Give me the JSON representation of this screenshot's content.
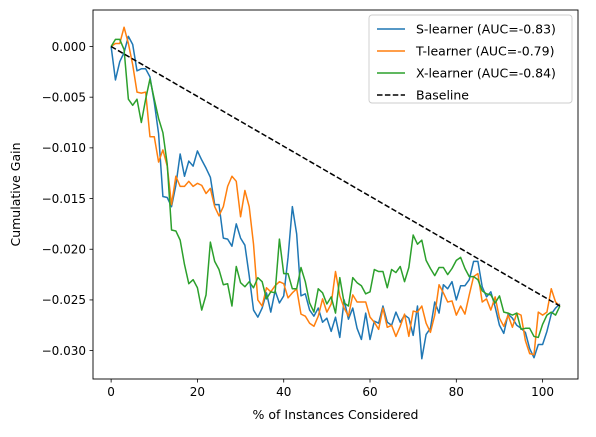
{
  "chart_data": {
    "type": "line",
    "title": "",
    "xlabel": "% of Instances Considered",
    "ylabel": "Cumulative Gain",
    "xlim": [
      -4.2,
      108.2
    ],
    "ylim": [
      -0.0328,
      0.0036
    ],
    "xticks": [
      0,
      20,
      40,
      60,
      80,
      100
    ],
    "xtick_labels": [
      "0",
      "20",
      "40",
      "60",
      "80",
      "100"
    ],
    "yticks": [
      0.0,
      -0.005,
      -0.01,
      -0.015,
      -0.02,
      -0.025,
      -0.03
    ],
    "ytick_labels": [
      "0.000",
      "−0.005",
      "−0.010",
      "−0.015",
      "−0.020",
      "−0.025",
      "−0.030"
    ],
    "grid": false,
    "legend_position": "top-right",
    "series": [
      {
        "name": "S-learner (AUC=-0.83)",
        "color": "#1f77b4",
        "style": "solid",
        "x": [
          0,
          1,
          2,
          3,
          4,
          5,
          6,
          7,
          8,
          9,
          10,
          11,
          12,
          13,
          14,
          15,
          16,
          17,
          18,
          19,
          20,
          21,
          22,
          23,
          24,
          25,
          26,
          27,
          28,
          29,
          30,
          31,
          32,
          33,
          34,
          35,
          36,
          37,
          38,
          39,
          40,
          41,
          42,
          43,
          44,
          45,
          46,
          47,
          48,
          49,
          50,
          51,
          52,
          53,
          54,
          55,
          56,
          57,
          58,
          59,
          60,
          61,
          62,
          63,
          64,
          65,
          66,
          67,
          68,
          69,
          70,
          71,
          72,
          73,
          74,
          75,
          76,
          77,
          78,
          79,
          80,
          81,
          82,
          83,
          84,
          85,
          86,
          87,
          88,
          89,
          90,
          91,
          92,
          93,
          94,
          95,
          96,
          97,
          98,
          99,
          100,
          101,
          102,
          103,
          104
        ],
        "y": [
          0.0,
          -0.0033,
          -0.0015,
          -0.0006,
          0.001,
          0.0002,
          -0.0024,
          -0.0022,
          -0.0022,
          -0.003,
          -0.0055,
          -0.0086,
          -0.0148,
          -0.0149,
          -0.0158,
          -0.0137,
          -0.0106,
          -0.0128,
          -0.0113,
          -0.0118,
          -0.0103,
          -0.0112,
          -0.012,
          -0.0129,
          -0.0156,
          -0.0156,
          -0.0189,
          -0.019,
          -0.0197,
          -0.0175,
          -0.0189,
          -0.0196,
          -0.0226,
          -0.026,
          -0.0267,
          -0.0258,
          -0.0243,
          -0.0262,
          -0.0241,
          -0.0253,
          -0.0246,
          -0.0208,
          -0.0158,
          -0.0185,
          -0.0246,
          -0.0244,
          -0.026,
          -0.0266,
          -0.0258,
          -0.0272,
          -0.0268,
          -0.0281,
          -0.0267,
          -0.0287,
          -0.025,
          -0.0269,
          -0.0258,
          -0.0278,
          -0.0289,
          -0.0263,
          -0.0289,
          -0.0271,
          -0.0273,
          -0.0256,
          -0.0272,
          -0.0275,
          -0.0262,
          -0.0272,
          -0.0265,
          -0.0268,
          -0.0285,
          -0.0256,
          -0.0308,
          -0.0284,
          -0.0278,
          -0.0252,
          -0.0263,
          -0.0235,
          -0.0239,
          -0.0232,
          -0.025,
          -0.0236,
          -0.0236,
          -0.023,
          -0.0212,
          -0.0212,
          -0.0237,
          -0.0247,
          -0.0242,
          -0.0257,
          -0.0275,
          -0.0283,
          -0.0264,
          -0.0268,
          -0.0275,
          -0.0278,
          -0.0282,
          -0.0298,
          -0.0307,
          -0.0294,
          -0.0294,
          -0.0281,
          -0.0264,
          -0.0258,
          -0.0254
        ]
      },
      {
        "name": "T-learner (AUC=-0.79)",
        "color": "#ff7f0e",
        "style": "solid",
        "x": [
          0,
          1,
          2,
          3,
          4,
          5,
          6,
          7,
          8,
          9,
          10,
          11,
          12,
          13,
          14,
          15,
          16,
          17,
          18,
          19,
          20,
          21,
          22,
          23,
          24,
          25,
          26,
          27,
          28,
          29,
          30,
          31,
          32,
          33,
          34,
          35,
          36,
          37,
          38,
          39,
          40,
          41,
          42,
          43,
          44,
          45,
          46,
          47,
          48,
          49,
          50,
          51,
          52,
          53,
          54,
          55,
          56,
          57,
          58,
          59,
          60,
          61,
          62,
          63,
          64,
          65,
          66,
          67,
          68,
          69,
          70,
          71,
          72,
          73,
          74,
          75,
          76,
          77,
          78,
          79,
          80,
          81,
          82,
          83,
          84,
          85,
          86,
          87,
          88,
          89,
          90,
          91,
          92,
          93,
          94,
          95,
          96,
          97,
          98,
          99,
          100,
          101,
          102,
          103,
          104
        ],
        "y": [
          0.0,
          0.0003,
          0.0003,
          0.0019,
          0.0003,
          -0.0018,
          -0.0045,
          -0.0046,
          -0.0045,
          -0.0089,
          -0.0089,
          -0.0114,
          -0.0102,
          -0.0118,
          -0.0156,
          -0.0128,
          -0.0138,
          -0.0138,
          -0.0133,
          -0.0138,
          -0.0135,
          -0.0137,
          -0.0145,
          -0.014,
          -0.0158,
          -0.0167,
          -0.0158,
          -0.0138,
          -0.0128,
          -0.0133,
          -0.0168,
          -0.0142,
          -0.0158,
          -0.0195,
          -0.025,
          -0.0256,
          -0.0238,
          -0.0242,
          -0.0236,
          -0.0232,
          -0.0234,
          -0.0248,
          -0.0243,
          -0.0239,
          -0.0264,
          -0.0266,
          -0.0273,
          -0.0276,
          -0.0266,
          -0.0249,
          -0.0262,
          -0.0254,
          -0.0222,
          -0.0246,
          -0.0258,
          -0.0266,
          -0.0245,
          -0.0252,
          -0.0252,
          -0.0252,
          -0.0267,
          -0.0272,
          -0.0279,
          -0.0258,
          -0.0277,
          -0.0275,
          -0.0286,
          -0.0276,
          -0.0264,
          -0.0286,
          -0.0261,
          -0.0262,
          -0.0256,
          -0.0273,
          -0.0282,
          -0.0265,
          -0.0235,
          -0.0243,
          -0.0252,
          -0.0251,
          -0.0265,
          -0.0256,
          -0.0264,
          -0.0245,
          -0.0227,
          -0.0224,
          -0.0252,
          -0.0249,
          -0.026,
          -0.0247,
          -0.0268,
          -0.0276,
          -0.0265,
          -0.0277,
          -0.0263,
          -0.0265,
          -0.029,
          -0.0303,
          -0.0304,
          -0.0262,
          -0.0265,
          -0.0262,
          -0.0239,
          -0.0252,
          -0.0256
        ]
      },
      {
        "name": "X-learner (AUC=-0.84)",
        "color": "#2ca02c",
        "style": "solid",
        "x": [
          0,
          1,
          2,
          3,
          4,
          5,
          6,
          7,
          8,
          9,
          10,
          11,
          12,
          13,
          14,
          15,
          16,
          17,
          18,
          19,
          20,
          21,
          22,
          23,
          24,
          25,
          26,
          27,
          28,
          29,
          30,
          31,
          32,
          33,
          34,
          35,
          36,
          37,
          38,
          39,
          40,
          41,
          42,
          43,
          44,
          45,
          46,
          47,
          48,
          49,
          50,
          51,
          52,
          53,
          54,
          55,
          56,
          57,
          58,
          59,
          60,
          61,
          62,
          63,
          64,
          65,
          66,
          67,
          68,
          69,
          70,
          71,
          72,
          73,
          74,
          75,
          76,
          77,
          78,
          79,
          80,
          81,
          82,
          83,
          84,
          85,
          86,
          87,
          88,
          89,
          90,
          91,
          92,
          93,
          94,
          95,
          96,
          97,
          98,
          99,
          100,
          101,
          102,
          103,
          104
        ],
        "y": [
          0.0,
          0.0007,
          0.0007,
          -0.0003,
          -0.0052,
          -0.0058,
          -0.0052,
          -0.0075,
          -0.0052,
          -0.0032,
          -0.0052,
          -0.0071,
          -0.0085,
          -0.0116,
          -0.0181,
          -0.0182,
          -0.0191,
          -0.0215,
          -0.0234,
          -0.023,
          -0.0238,
          -0.026,
          -0.0245,
          -0.0193,
          -0.0212,
          -0.022,
          -0.0235,
          -0.0234,
          -0.0256,
          -0.0217,
          -0.0233,
          -0.0237,
          -0.0232,
          -0.0238,
          -0.0228,
          -0.0232,
          -0.0249,
          -0.0242,
          -0.0243,
          -0.019,
          -0.0224,
          -0.0224,
          -0.0239,
          -0.0239,
          -0.0218,
          -0.0232,
          -0.0253,
          -0.0262,
          -0.0239,
          -0.0243,
          -0.0254,
          -0.0247,
          -0.0263,
          -0.0228,
          -0.0253,
          -0.0256,
          -0.0228,
          -0.0233,
          -0.0236,
          -0.0244,
          -0.0242,
          -0.022,
          -0.0222,
          -0.0222,
          -0.0238,
          -0.022,
          -0.0223,
          -0.0217,
          -0.0232,
          -0.0218,
          -0.0186,
          -0.0195,
          -0.0191,
          -0.0211,
          -0.0219,
          -0.0226,
          -0.0218,
          -0.0218,
          -0.0225,
          -0.0219,
          -0.0211,
          -0.0208,
          -0.0219,
          -0.0227,
          -0.0227,
          -0.023,
          -0.0241,
          -0.0244,
          -0.0245,
          -0.0253,
          -0.0246,
          -0.0262,
          -0.0263,
          -0.0265,
          -0.0263,
          -0.0279,
          -0.0278,
          -0.0278,
          -0.0286,
          -0.0287,
          -0.0274,
          -0.0265,
          -0.0262,
          -0.0265,
          -0.0256
        ]
      },
      {
        "name": "Baseline",
        "color": "#000000",
        "style": "dashed",
        "x": [
          0,
          104
        ],
        "y": [
          0.0,
          -0.0256
        ]
      }
    ]
  }
}
